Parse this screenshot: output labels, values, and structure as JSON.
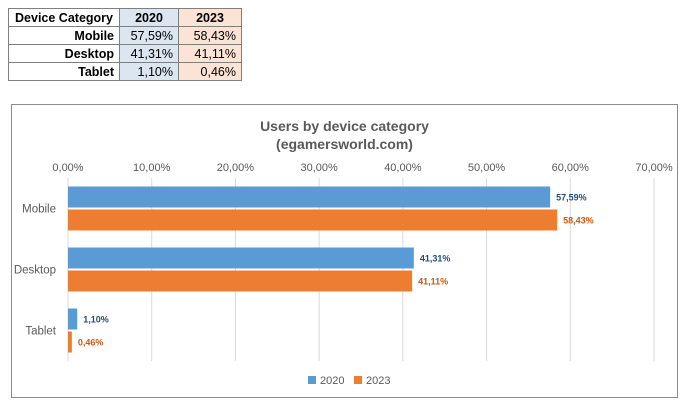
{
  "table": {
    "headers": [
      "Device Category",
      "2020",
      "2023"
    ],
    "rows": [
      {
        "label": "Mobile",
        "v2020": "57,59%",
        "v2023": "58,43%"
      },
      {
        "label": "Desktop",
        "v2020": "41,31%",
        "v2023": "41,11%"
      },
      {
        "label": "Tablet",
        "v2020": "1,10%",
        "v2023": "0,46%"
      }
    ]
  },
  "colors": {
    "series_2020": "#5b9bd5",
    "series_2023": "#ed7d31",
    "label_2020": "#1f4e79",
    "label_2023": "#c55a11",
    "grid": "#d9d9d9",
    "axis_text": "#595959"
  },
  "chart_data": {
    "type": "bar",
    "orientation": "horizontal",
    "title": "Users by device category",
    "subtitle": "(egamersworld.com)",
    "categories": [
      "Mobile",
      "Desktop",
      "Tablet"
    ],
    "series": [
      {
        "name": "2020",
        "values": [
          57.59,
          41.31,
          1.1
        ],
        "labels": [
          "57,59%",
          "41,31%",
          "1,10%"
        ]
      },
      {
        "name": "2023",
        "values": [
          58.43,
          41.11,
          0.46
        ],
        "labels": [
          "58,43%",
          "41,11%",
          "0,46%"
        ]
      }
    ],
    "xlim": [
      0,
      70
    ],
    "x_ticks": [
      0,
      10,
      20,
      30,
      40,
      50,
      60,
      70
    ],
    "x_tick_labels": [
      "0,00%",
      "10,00%",
      "20,00%",
      "30,00%",
      "40,00%",
      "50,00%",
      "60,00%",
      "70,00%"
    ],
    "x_axis_position": "top",
    "grid": true,
    "legend": [
      "2020",
      "2023"
    ],
    "legend_position": "bottom"
  }
}
